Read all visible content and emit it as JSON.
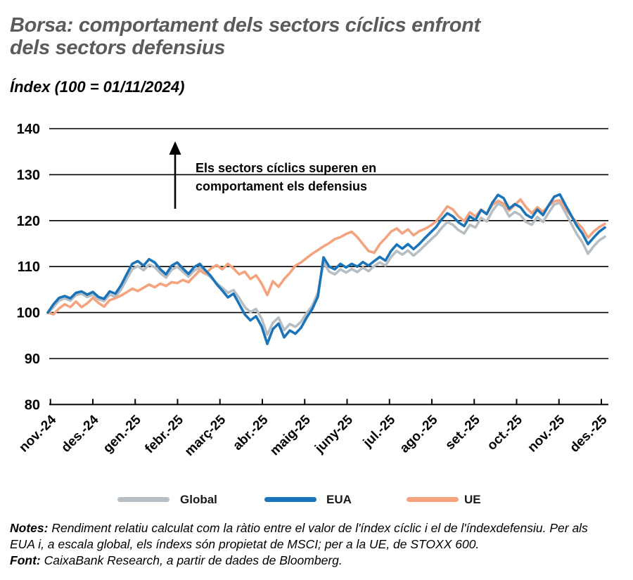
{
  "header": {
    "title_line1": "Borsa: comportament dels sectors cíclics enfront",
    "title_line2": "dels sectors defensius",
    "subtitle": "Índex (100 = 01/11/2024)"
  },
  "annotation": {
    "line1": "Els sectors cíclics superen en",
    "line2": "comportament els defensius"
  },
  "legend": [
    {
      "label": "Global",
      "color": "#b6bec3"
    },
    {
      "label": "EUA",
      "color": "#1b74b8"
    },
    {
      "label": "UE",
      "color": "#f3a47e"
    }
  ],
  "notes": {
    "notes_label": "Notes:",
    "notes_text": "Rendiment relatiu calculat com la ràtio entre el valor de l'índex cíclic i el de l'índexdefensiu. Per als EUA i, a escala global, els índexs són propietat de MSCI; per a la UE, de STOXX 600.",
    "font_label": "Font:",
    "font_text": "CaixaBank Research, a partir de dades de Bloomberg."
  },
  "chart_data": {
    "type": "line",
    "title": "Borsa: comportament dels sectors cíclics enfront dels sectors defensius",
    "ylabel": "Índex (100 = 01/11/2024)",
    "ylim": [
      80,
      140
    ],
    "yticks": [
      140,
      130,
      120,
      110,
      100,
      90,
      80
    ],
    "categories": [
      "nov.-24",
      "des.-24",
      "gen.-25",
      "febr.-25",
      "març-25",
      "abr.-25",
      "maig-25",
      "juny-25",
      "jul.-25",
      "ago.-25",
      "set.-25",
      "oct.-25",
      "nov.-25",
      "des.-25"
    ],
    "grid": true,
    "legend_position": "bottom",
    "x_start_label": "01/11/2024",
    "series": [
      {
        "name": "Global",
        "color": "#b6bec3",
        "values": [
          100.0,
          101.2,
          102.6,
          103.1,
          102.6,
          103.8,
          104.1,
          103.4,
          103.9,
          102.9,
          102.5,
          103.9,
          103.4,
          105.0,
          107.2,
          109.4,
          110.1,
          109.2,
          110.4,
          109.9,
          108.6,
          107.6,
          109.3,
          110.0,
          108.9,
          107.8,
          109.1,
          109.8,
          108.6,
          107.6,
          106.4,
          105.4,
          104.3,
          104.9,
          103.2,
          101.2,
          100.1,
          100.8,
          98.7,
          95.2,
          97.8,
          98.9,
          96.2,
          97.5,
          96.9,
          98.0,
          99.9,
          101.5,
          104.3,
          110.9,
          108.9,
          108.3,
          109.4,
          108.7,
          109.5,
          108.8,
          109.8,
          109.0,
          110.1,
          110.9,
          110.2,
          112.1,
          113.4,
          112.6,
          113.5,
          112.4,
          113.4,
          114.6,
          115.8,
          116.9,
          118.4,
          119.7,
          119.1,
          117.9,
          117.2,
          119.1,
          118.5,
          120.6,
          119.8,
          122.1,
          123.7,
          123.1,
          120.9,
          121.9,
          121.2,
          119.7,
          119.1,
          120.8,
          119.7,
          121.7,
          123.5,
          123.9,
          121.7,
          119.4,
          117.1,
          115.3,
          112.8,
          114.4,
          115.7,
          116.5
        ]
      },
      {
        "name": "EUA",
        "color": "#1b74b8",
        "values": [
          100.0,
          101.8,
          103.2,
          103.6,
          103.1,
          104.3,
          104.6,
          103.9,
          104.5,
          103.4,
          103.0,
          104.6,
          104.1,
          105.9,
          108.3,
          110.6,
          111.2,
          110.2,
          111.6,
          110.9,
          109.4,
          108.3,
          110.2,
          110.9,
          109.6,
          108.4,
          109.9,
          110.6,
          109.2,
          107.9,
          106.2,
          104.8,
          103.3,
          104.1,
          101.9,
          99.6,
          98.3,
          99.2,
          97.0,
          93.2,
          96.4,
          97.6,
          94.6,
          96.1,
          95.4,
          96.7,
          98.9,
          100.8,
          103.5,
          112.0,
          110.0,
          109.4,
          110.6,
          109.8,
          110.6,
          110.0,
          111.0,
          110.2,
          111.2,
          112.1,
          111.3,
          113.4,
          114.8,
          113.9,
          114.9,
          113.8,
          114.9,
          116.2,
          117.4,
          118.6,
          120.3,
          121.6,
          120.9,
          119.6,
          118.8,
          120.9,
          120.1,
          122.3,
          121.4,
          123.9,
          125.6,
          124.9,
          122.6,
          123.6,
          122.9,
          121.3,
          120.6,
          122.4,
          121.2,
          123.3,
          125.2,
          125.7,
          123.4,
          121.2,
          118.9,
          117.2,
          114.9,
          116.3,
          117.6,
          118.5
        ]
      },
      {
        "name": "UE",
        "color": "#f3a47e",
        "values": [
          100.0,
          99.6,
          100.9,
          101.8,
          101.2,
          102.4,
          101.2,
          102.0,
          103.2,
          102.1,
          101.3,
          102.7,
          103.1,
          103.7,
          104.4,
          105.2,
          104.7,
          105.4,
          106.1,
          105.5,
          106.3,
          105.8,
          106.6,
          106.4,
          107.1,
          106.6,
          107.9,
          109.2,
          108.4,
          109.6,
          110.3,
          109.4,
          110.6,
          109.6,
          108.3,
          108.9,
          107.3,
          108.1,
          106.3,
          103.8,
          106.8,
          105.6,
          107.3,
          108.6,
          110.2,
          110.9,
          111.9,
          112.8,
          113.6,
          114.4,
          115.1,
          116.0,
          116.4,
          117.1,
          117.6,
          116.4,
          114.9,
          113.4,
          113.0,
          114.9,
          116.2,
          117.6,
          118.3,
          117.2,
          118.1,
          116.8,
          117.7,
          118.2,
          118.9,
          119.8,
          121.4,
          123.1,
          122.4,
          120.9,
          119.9,
          121.8,
          120.9,
          122.4,
          121.5,
          123.4,
          124.3,
          123.7,
          122.2,
          123.4,
          124.6,
          122.9,
          121.6,
          122.9,
          121.9,
          123.2,
          124.2,
          124.4,
          122.6,
          121.0,
          119.6,
          118.4,
          116.3,
          117.6,
          118.6,
          119.3
        ]
      }
    ]
  }
}
